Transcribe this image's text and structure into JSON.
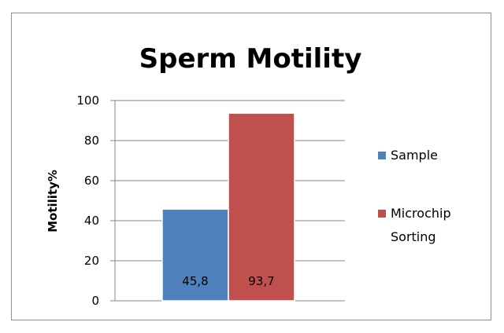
{
  "chart_data": {
    "type": "bar",
    "title": "Sperm Motility",
    "xlabel": "",
    "ylabel": "Motility%",
    "ylim": [
      0,
      100
    ],
    "yticks": [
      0,
      20,
      40,
      60,
      80,
      100
    ],
    "grid": true,
    "legend_position": "right",
    "series": [
      {
        "name": "Sample",
        "values": [
          45.8
        ],
        "label": "45,8",
        "color": "#4f81bd"
      },
      {
        "name": "Microchip Sorting",
        "values": [
          93.7
        ],
        "label": "93,7",
        "color": "#c0504d"
      }
    ],
    "legend": [
      {
        "lines": [
          "Sample"
        ],
        "color": "#4f81bd"
      },
      {
        "lines": [
          "Microchip",
          "Sorting"
        ],
        "color": "#c0504d"
      }
    ]
  }
}
